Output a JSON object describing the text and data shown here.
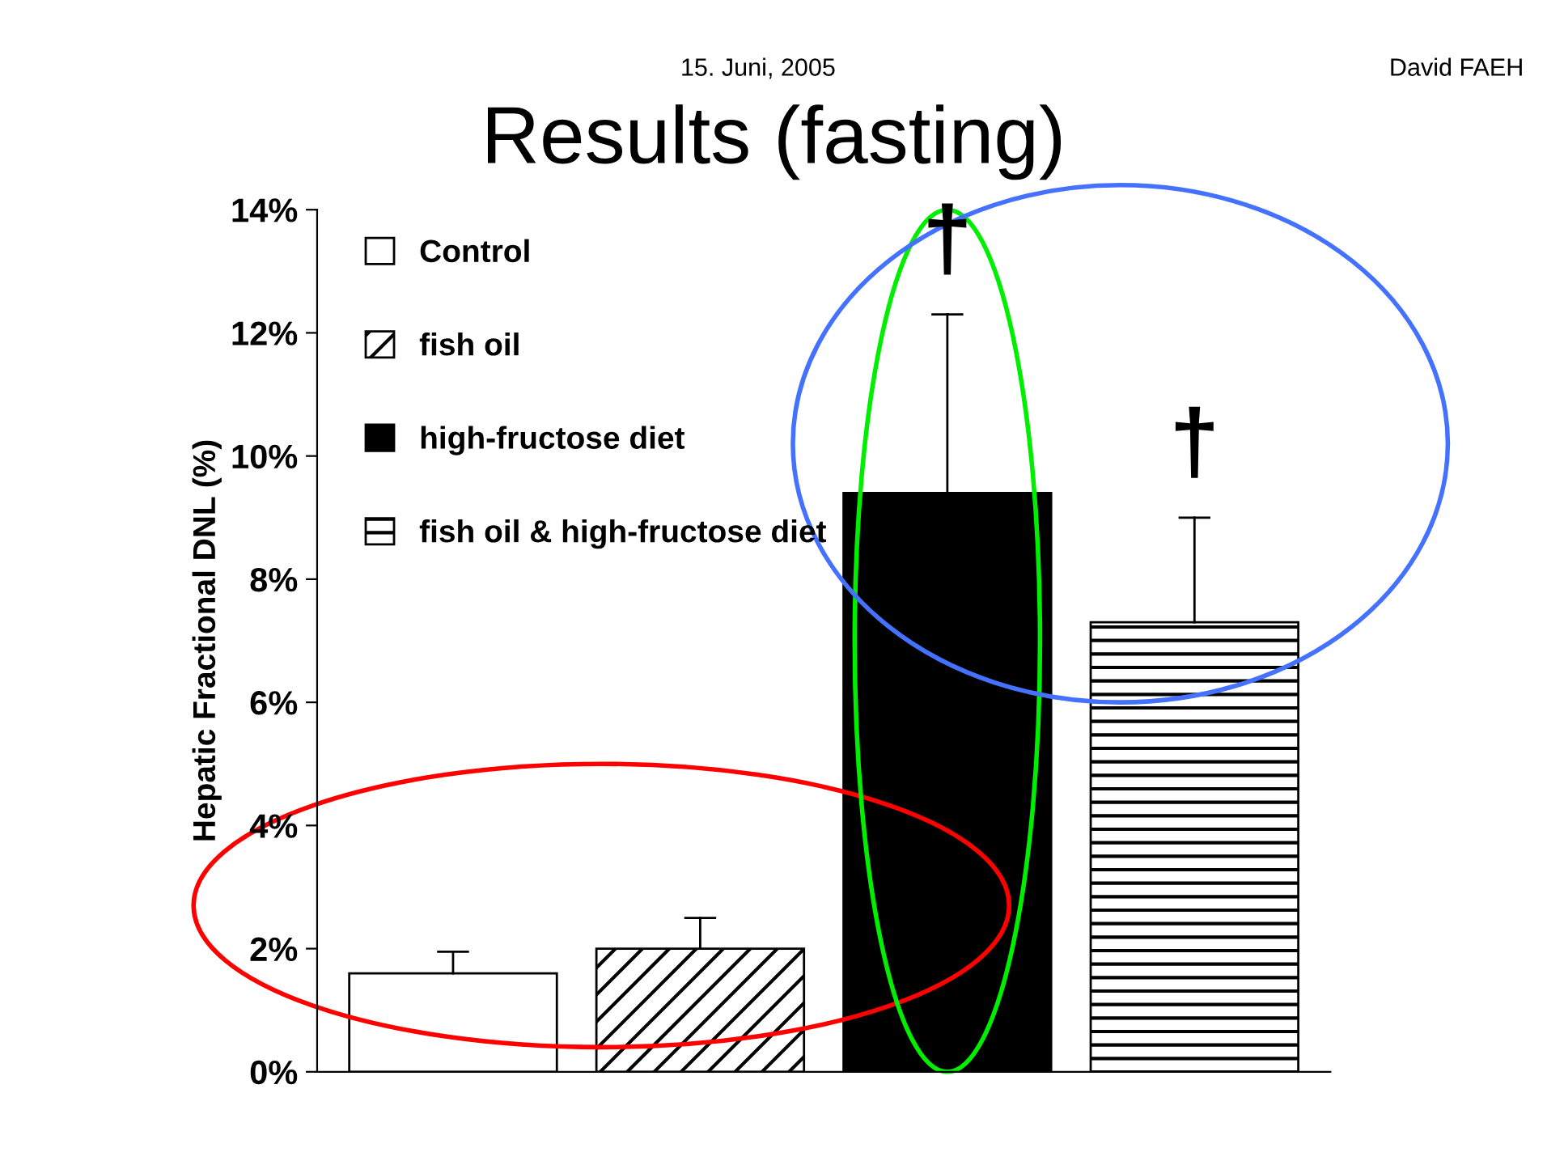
{
  "chart_data": {
    "type": "bar",
    "title": "Results (fasting)",
    "ylabel": "Hepatic Fractional DNL (%)",
    "categories": [
      null,
      null,
      null,
      null
    ],
    "series": [
      {
        "name": "Control",
        "color": "#ffffff",
        "values": [
          1.6,
          null,
          null,
          null
        ],
        "errors": [
          [
            1.6,
            1.95
          ],
          null,
          null,
          null
        ]
      },
      {
        "name": "fish oil",
        "color": "#000000",
        "values": [
          null,
          2.0,
          null,
          null
        ],
        "errors": [
          null,
          [
            2.0,
            2.5
          ],
          null,
          null
        ]
      },
      {
        "name": "high-fructose diet",
        "color": "#000000",
        "values": [
          null,
          null,
          9.4,
          null
        ],
        "errors": [
          null,
          null,
          [
            9.4,
            12.3
          ],
          null
        ]
      },
      {
        "name": "fish oil & high-fructose diet",
        "color": "#000000",
        "values": [
          null,
          null,
          null,
          7.3
        ],
        "errors": [
          null,
          null,
          null,
          [
            7.3,
            9.0
          ]
        ]
      }
    ],
    "ylim": [
      0,
      14
    ],
    "yticks": [
      {
        "value": 0,
        "label": "0%"
      },
      {
        "value": 2,
        "label": "2%"
      },
      {
        "value": 4,
        "label": "4%"
      },
      {
        "value": 6,
        "label": "6%"
      },
      {
        "value": 8,
        "label": "8%"
      },
      {
        "value": 10,
        "label": "10%"
      },
      {
        "value": 12,
        "label": "12%"
      },
      {
        "value": 14,
        "label": "14%"
      }
    ],
    "grid": false,
    "legend": "top left",
    "annotations": [
      "†",
      "†",
      "15. Juni, 2005",
      "David FAEH"
    ]
  }
}
